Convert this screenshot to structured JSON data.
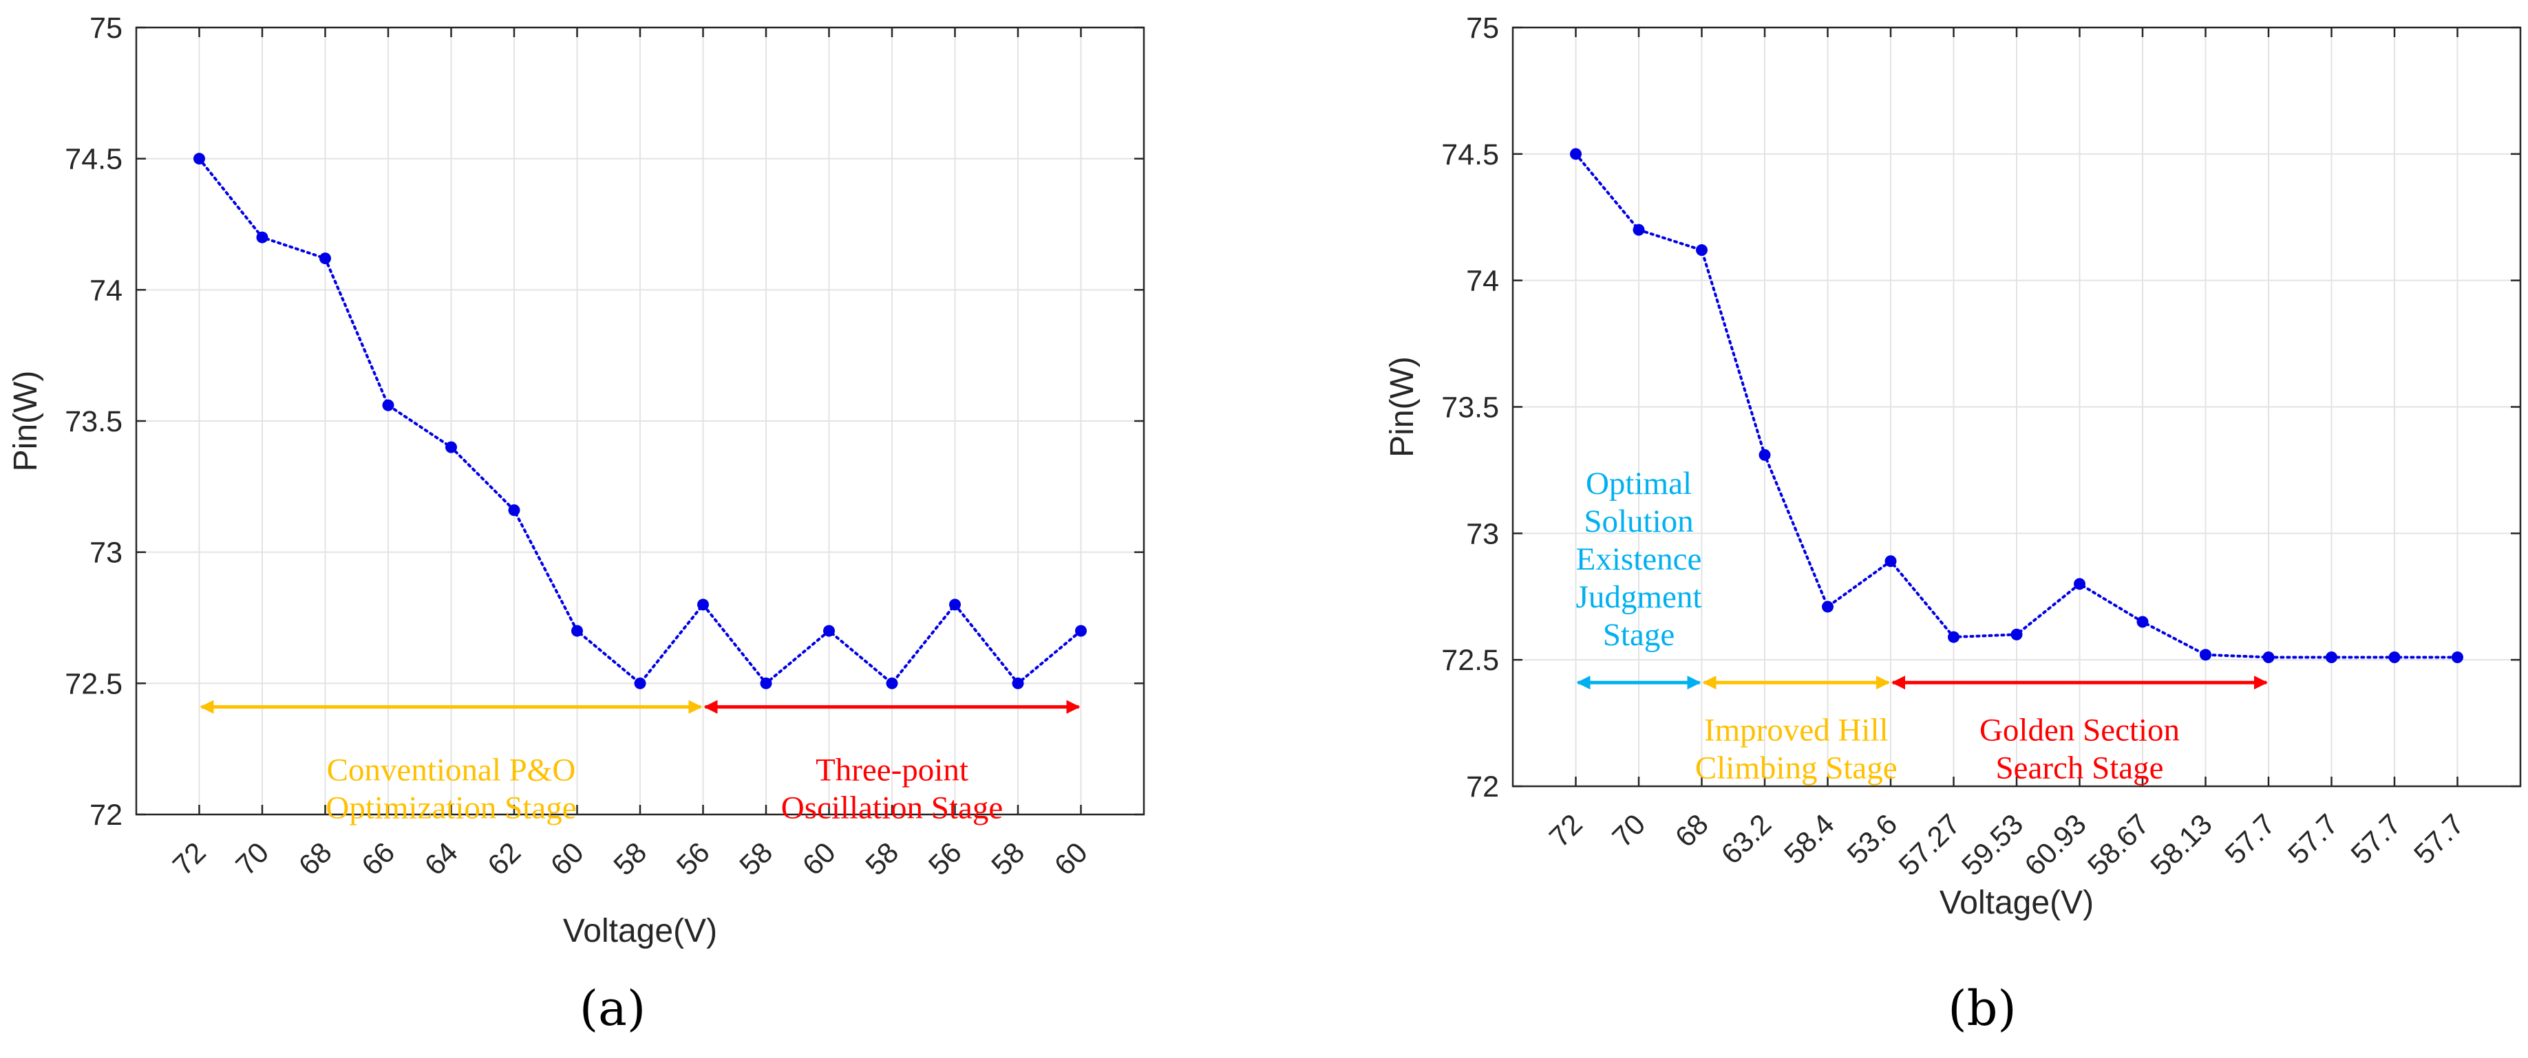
{
  "chart_data": [
    {
      "panel": "a",
      "caption": "(a)",
      "type": "line",
      "xlabel": "Voltage(V)",
      "ylabel": "Pin(W)",
      "ylim": [
        72,
        75
      ],
      "yticks": [
        72,
        72.5,
        73,
        73.5,
        74,
        74.5,
        75
      ],
      "grid": true,
      "categories": [
        "72",
        "70",
        "68",
        "66",
        "64",
        "62",
        "60",
        "58",
        "56",
        "58",
        "60",
        "58",
        "56",
        "58",
        "60"
      ],
      "series": [
        {
          "name": "Pin",
          "color": "#0000e6",
          "values": [
            74.5,
            74.2,
            74.12,
            73.56,
            73.4,
            73.16,
            72.7,
            72.5,
            72.8,
            72.5,
            72.7,
            72.5,
            72.8,
            72.5,
            72.7
          ]
        }
      ],
      "stages": [
        {
          "lines": [
            "Conventional P&O",
            "Optimization Stage"
          ],
          "color": "#ffc000",
          "from_index": 0,
          "to_index": 8,
          "level": 72.41,
          "text_level": 72.1
        },
        {
          "lines": [
            "Three-point",
            "Oscillation Stage"
          ],
          "color": "#ff0000",
          "from_index": 8,
          "to_index": 14,
          "level": 72.41,
          "text_level": 72.1
        }
      ]
    },
    {
      "panel": "b",
      "caption": "(b)",
      "type": "line",
      "xlabel": "Voltage(V)",
      "ylabel": "Pin(W)",
      "ylim": [
        72,
        75
      ],
      "yticks": [
        72,
        72.5,
        73,
        73.5,
        74,
        74.5,
        75
      ],
      "grid": true,
      "categories": [
        "72",
        "70",
        "68",
        "63.2",
        "58.4",
        "53.6",
        "57.27",
        "59.53",
        "60.93",
        "58.67",
        "58.13",
        "57.7",
        "57.7",
        "57.7",
        "57.7"
      ],
      "series": [
        {
          "name": "Pin",
          "color": "#0000e6",
          "values": [
            74.5,
            74.2,
            74.12,
            73.31,
            72.71,
            72.89,
            72.59,
            72.6,
            72.8,
            72.65,
            72.52,
            72.51,
            72.51,
            72.51,
            72.51
          ]
        }
      ],
      "stages": [
        {
          "lines": [
            "Optimal",
            "Solution",
            "Existence",
            "Judgment",
            "Stage"
          ],
          "color": "#00b0f0",
          "from_index": 0,
          "to_index": 2,
          "level": 72.41,
          "text_level": 72.9
        },
        {
          "lines": [
            "Improved Hill",
            "Climbing Stage"
          ],
          "color": "#ffc000",
          "from_index": 2,
          "to_index": 5,
          "level": 72.41,
          "text_level": 72.15
        },
        {
          "lines": [
            "Golden Section",
            "Search Stage"
          ],
          "color": "#ff0000",
          "from_index": 5,
          "to_index": 11,
          "level": 72.41,
          "text_level": 72.15
        }
      ]
    }
  ]
}
